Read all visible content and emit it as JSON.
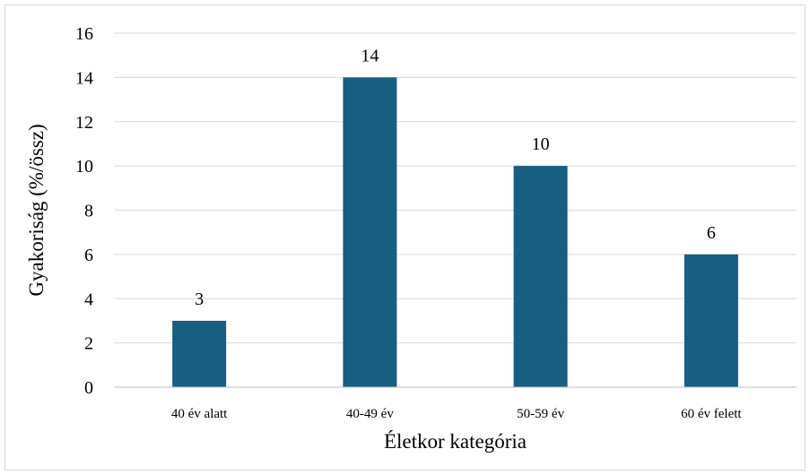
{
  "chart_data": {
    "type": "bar",
    "title": "",
    "xlabel": "Életkor kategória",
    "ylabel": "Gyakoriság (%/össz)",
    "categories": [
      "40 év alatt",
      "40-49 év",
      "50-59 év",
      "60 év felett"
    ],
    "values": [
      3,
      14,
      10,
      6
    ],
    "ylim": [
      0,
      16
    ],
    "yticks": [
      0,
      2,
      4,
      6,
      8,
      10,
      12,
      14,
      16
    ],
    "grid": true,
    "data_labels": true,
    "colors": {
      "bar": "#175e80",
      "grid": "#d9d9d9",
      "axis": "#bfbfbf"
    }
  }
}
